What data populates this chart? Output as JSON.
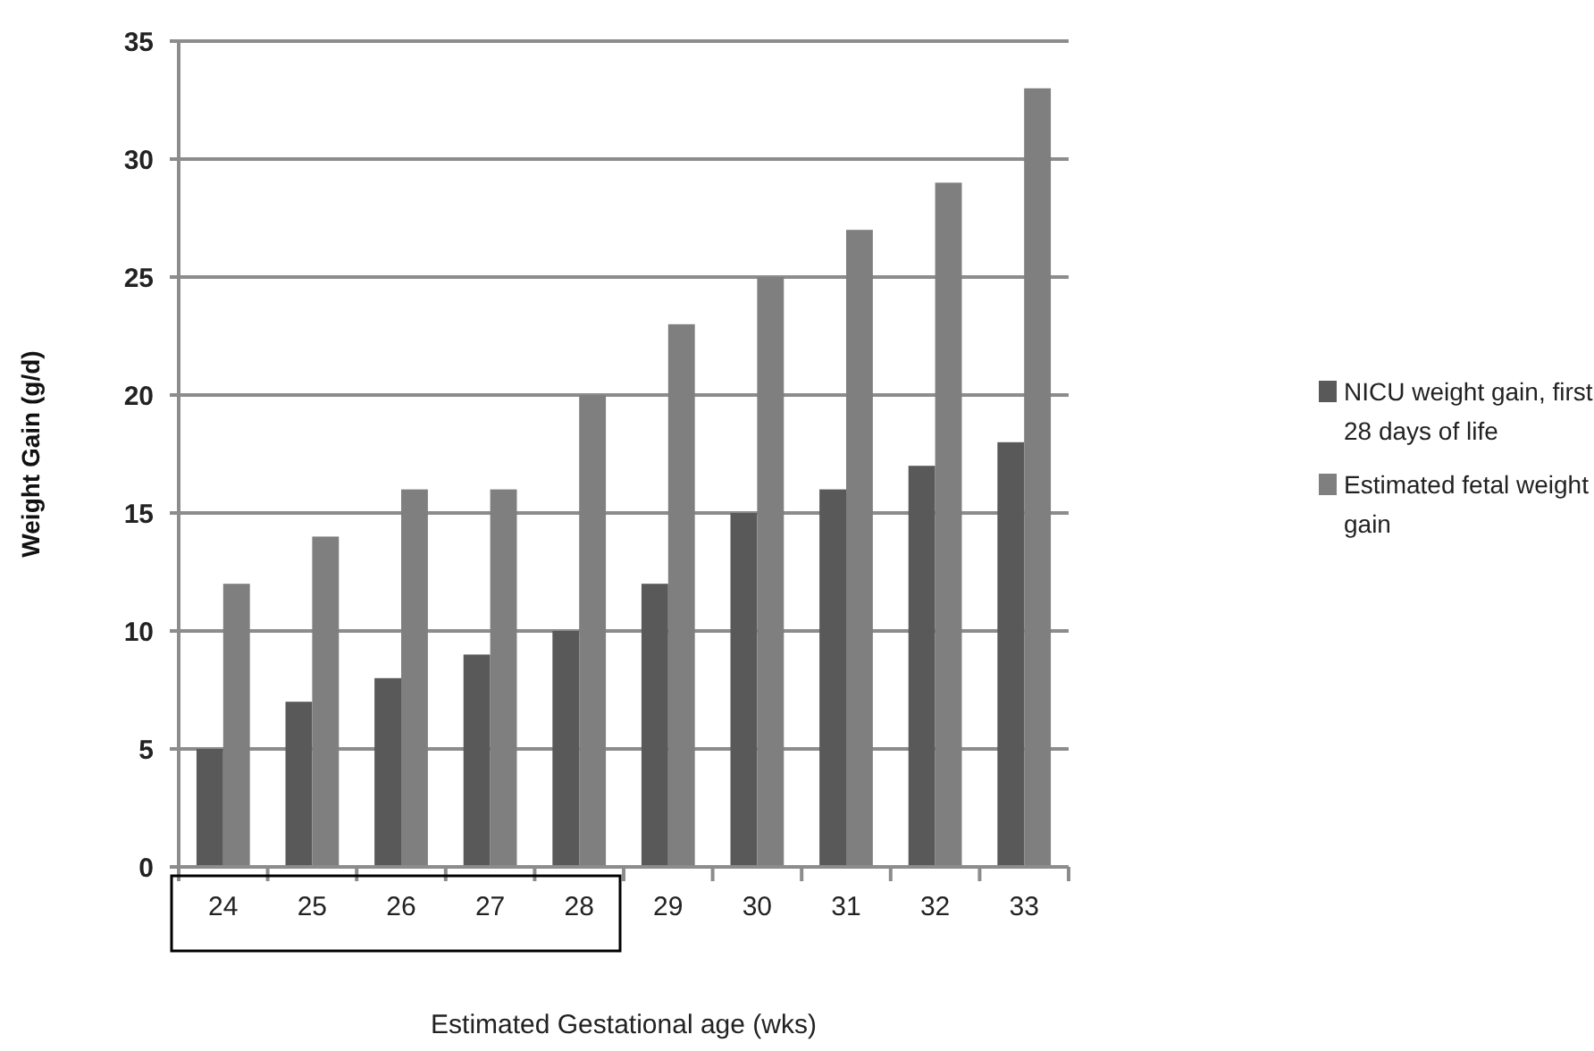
{
  "chart_data": {
    "type": "bar",
    "xlabel": "Estimated Gestational age (wks)",
    "ylabel": "Weight Gain (g/d)",
    "categories": [
      "24",
      "25",
      "26",
      "27",
      "28",
      "29",
      "30",
      "31",
      "32",
      "33"
    ],
    "series": [
      {
        "name": "NICU weight gain, first 28 days of life",
        "color": "#595959",
        "values": [
          5,
          7,
          8,
          9,
          10,
          12,
          15,
          16,
          17,
          18
        ]
      },
      {
        "name": "Estimated fetal weight gain",
        "color": "#7f7f7f",
        "values": [
          12,
          14,
          16,
          16,
          20,
          23,
          25,
          27,
          29,
          33
        ]
      }
    ],
    "ylim": [
      0,
      35
    ],
    "yticks": [
      0,
      5,
      10,
      15,
      20,
      25,
      30,
      35
    ],
    "grid": "y",
    "legend": "right"
  }
}
